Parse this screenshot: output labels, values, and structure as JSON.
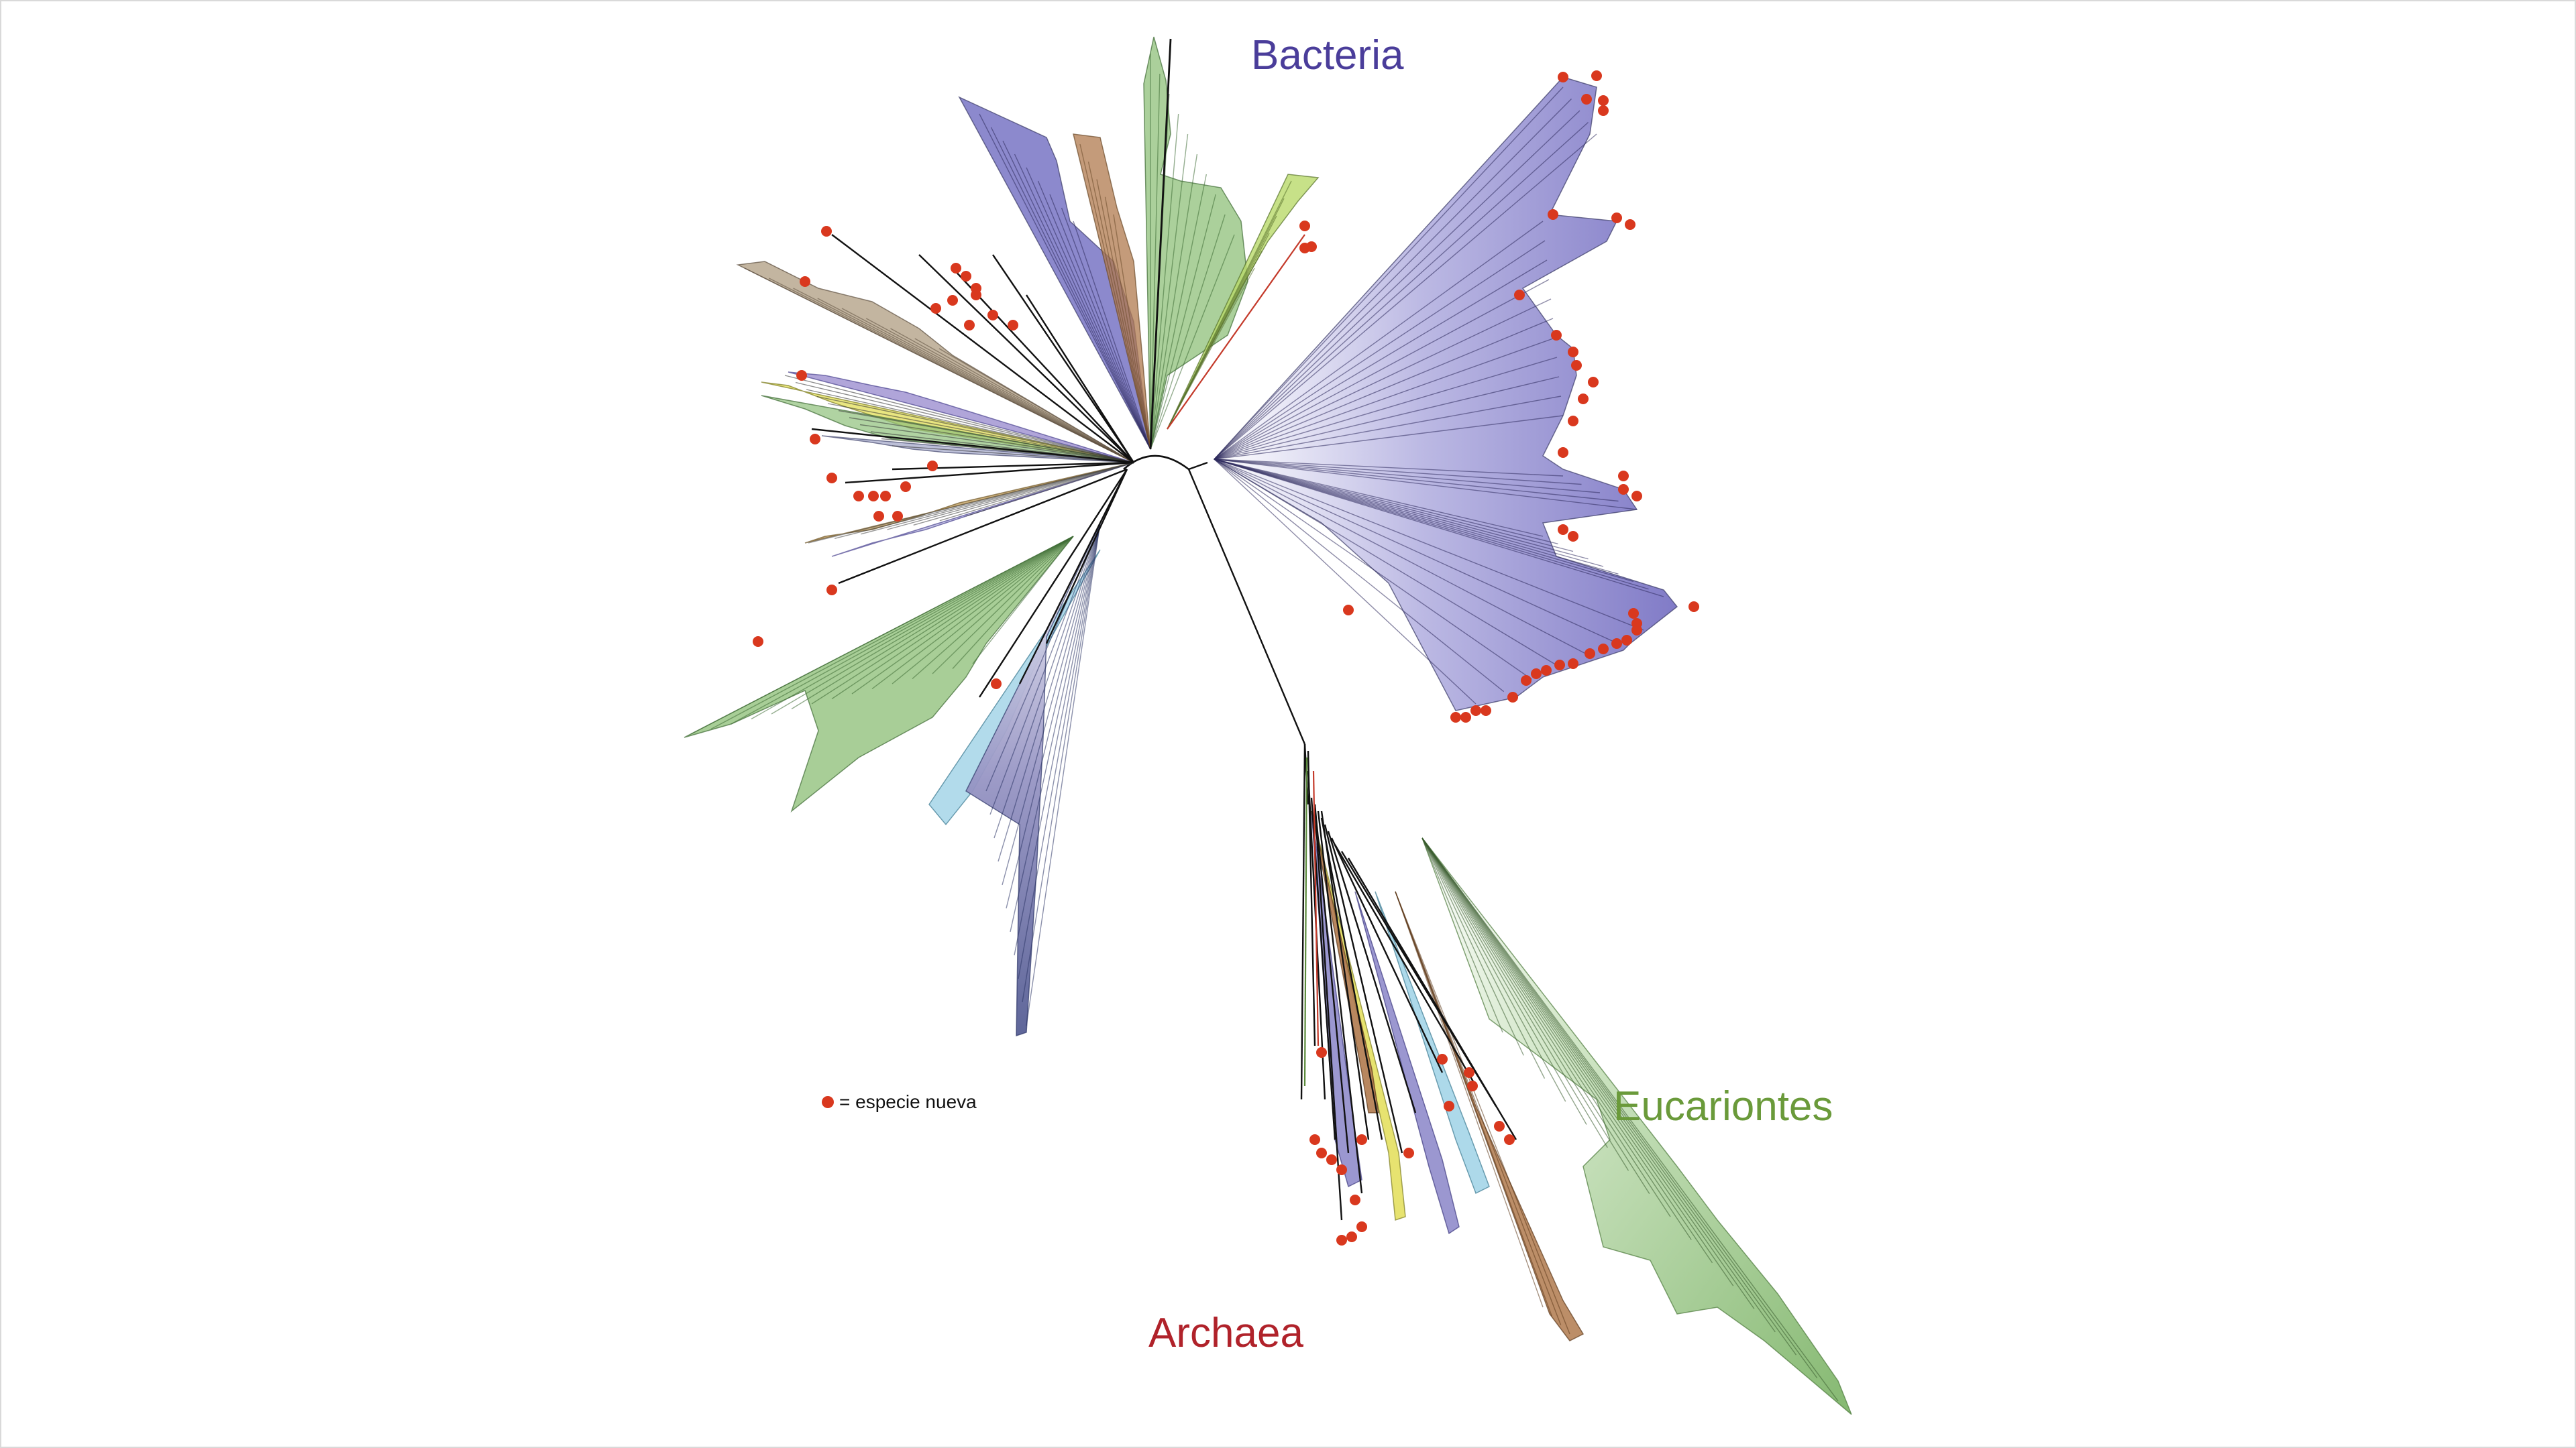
{
  "labels": {
    "bacteria": "Bacteria",
    "eucariontes": "Eucariontes",
    "archaea": "Archaea"
  },
  "legend": {
    "symbol": "red-dot-icon",
    "text": "= especie nueva"
  },
  "colors": {
    "bacteria_label": "#4a3d9a",
    "eucariontes_label": "#6a9a3a",
    "archaea_label": "#b0222a",
    "new_species_dot": "#d9381e",
    "clade_purple": "#7d79c6",
    "clade_green": "#8fc07a",
    "clade_tan": "#b8a88f",
    "clade_brown": "#b07a4e",
    "clade_yellow": "#e4e060",
    "clade_lightblue": "#9fd2e6",
    "branch": "#111111"
  }
}
